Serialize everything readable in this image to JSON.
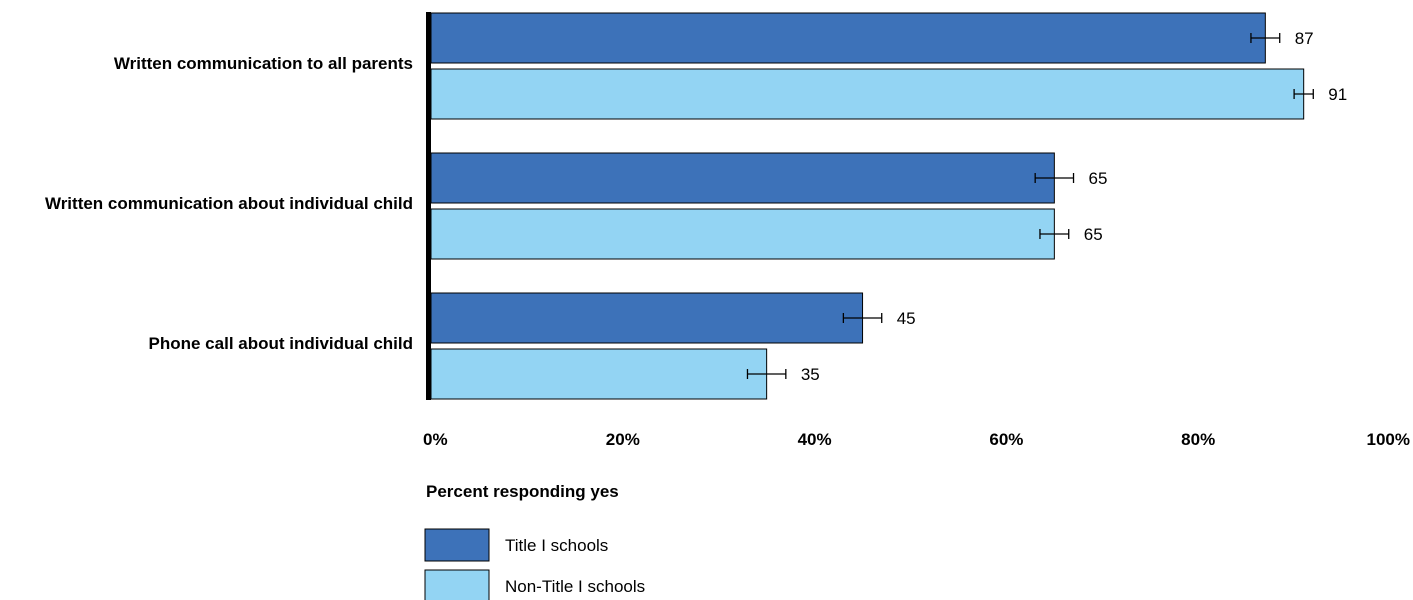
{
  "chart_data": {
    "type": "bar",
    "orientation": "horizontal",
    "categories": [
      "Written communication to all parents",
      "Written communication about individual child",
      "Phone call about individual child"
    ],
    "series": [
      {
        "name": "Title I schools",
        "color": "#3d72b9",
        "values": [
          87,
          65,
          45
        ],
        "error": [
          1.5,
          2,
          2
        ]
      },
      {
        "name": "Non-Title I schools",
        "color": "#93d4f3",
        "values": [
          91,
          65,
          35
        ],
        "error": [
          1,
          1.5,
          2
        ]
      }
    ],
    "xlim": [
      0,
      100
    ],
    "x_ticks": [
      "0%",
      "20%",
      "40%",
      "60%",
      "80%",
      "100%"
    ],
    "xlabel": "Percent responding yes",
    "grid": false,
    "legend_position": "bottom-left",
    "error_bars": true
  }
}
